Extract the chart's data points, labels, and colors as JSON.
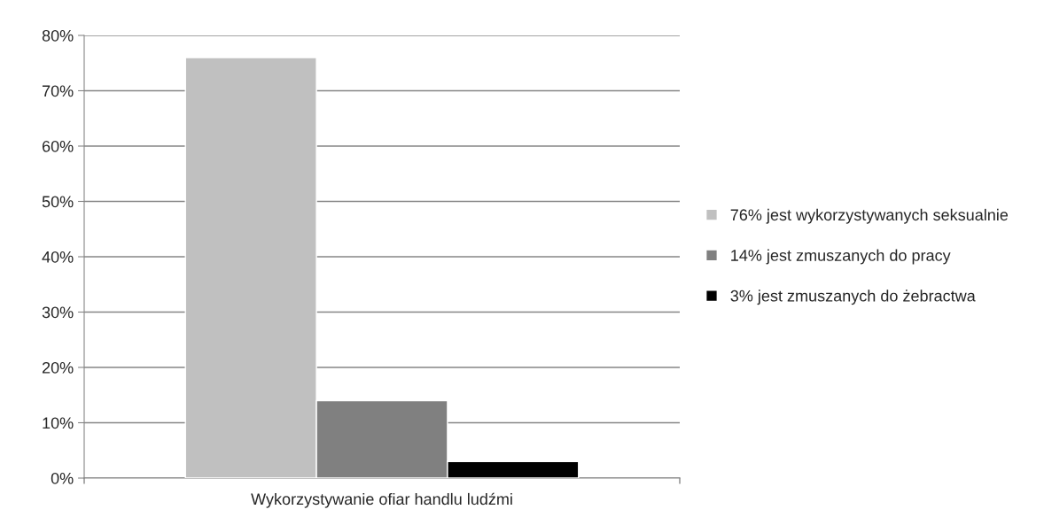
{
  "chart_data": {
    "type": "bar",
    "categories": [
      "Wykorzystywanie ofiar handlu ludźmi"
    ],
    "series": [
      {
        "name": "76% jest wykorzystywanych seksualnie",
        "color": "#c0c0c0",
        "values": [
          76
        ]
      },
      {
        "name": "14% jest zmuszanych do pracy",
        "color": "#808080",
        "values": [
          14
        ]
      },
      {
        "name": "3% jest zmuszanych do żebractwa",
        "color": "#000000",
        "values": [
          3
        ]
      }
    ],
    "ylim": [
      0,
      80
    ],
    "yticks": [
      {
        "value": 0,
        "label": "0%"
      },
      {
        "value": 10,
        "label": "10%"
      },
      {
        "value": 20,
        "label": "20%"
      },
      {
        "value": 30,
        "label": "30%"
      },
      {
        "value": 40,
        "label": "40%"
      },
      {
        "value": 50,
        "label": "50%"
      },
      {
        "value": 60,
        "label": "60%"
      },
      {
        "value": 70,
        "label": "70%"
      },
      {
        "value": 80,
        "label": "80%"
      }
    ],
    "grid": "y",
    "legend": "right"
  }
}
